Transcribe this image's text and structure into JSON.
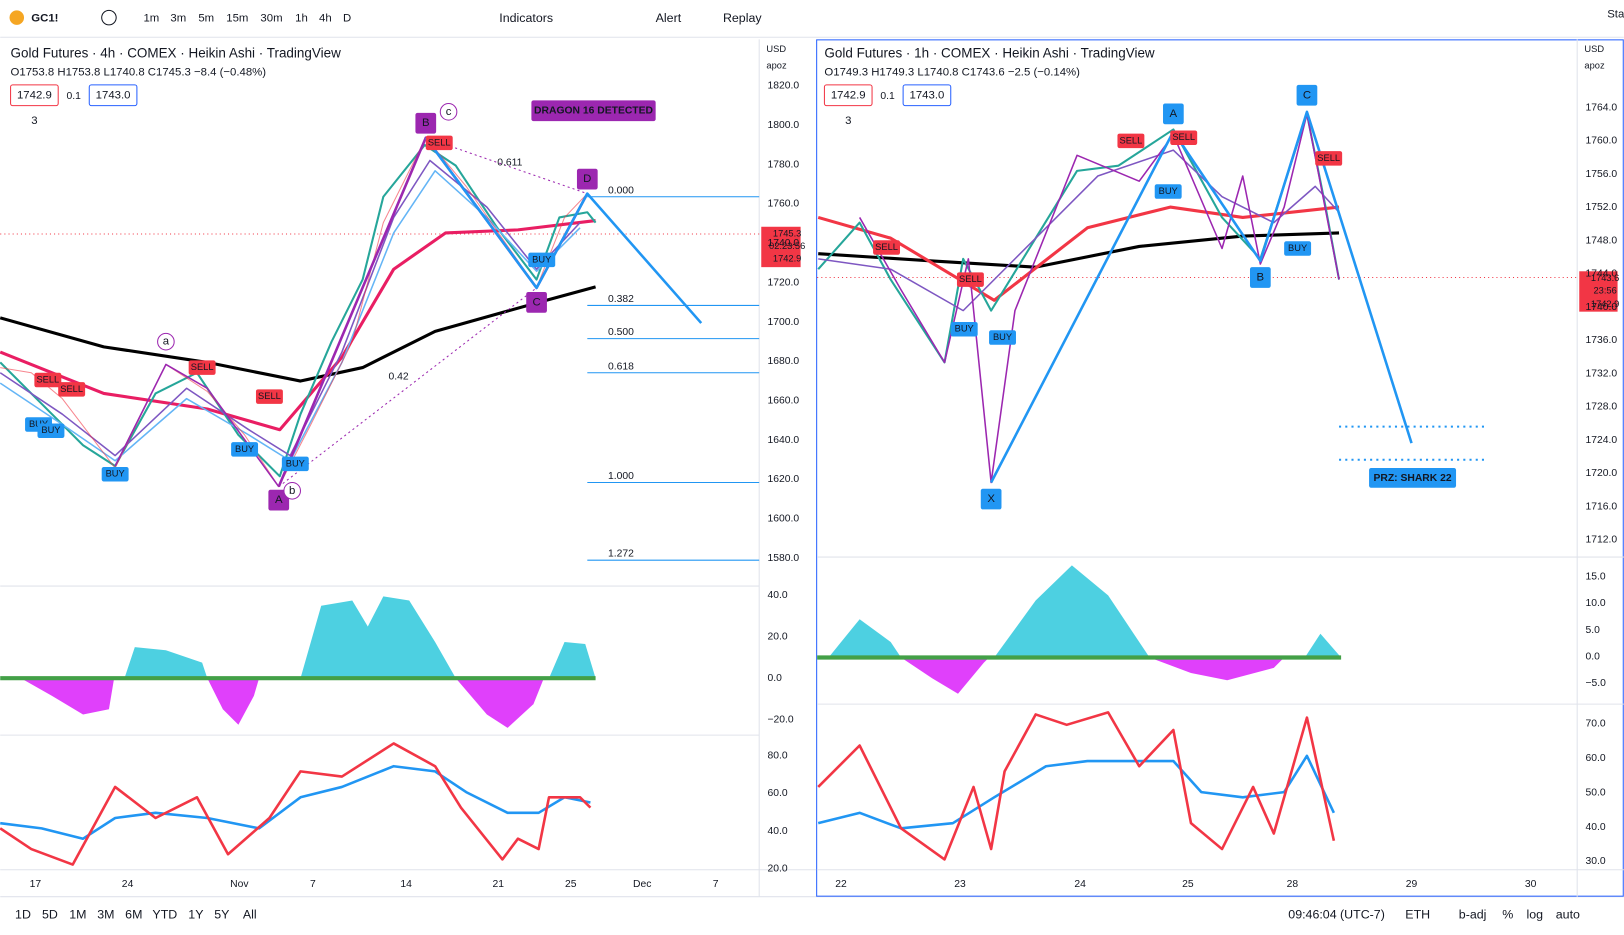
{
  "toolbar": {
    "symbol": "GC1!",
    "intervals": [
      "1m",
      "3m",
      "5m",
      "15m",
      "30m",
      "1h",
      "4h",
      "D"
    ],
    "indicators": "Indicators",
    "alert": "Alert",
    "replay": "Replay",
    "right": "Sta"
  },
  "left_pane": {
    "title": "Gold Futures · 4h · COMEX · Heikin Ashi · TradingView",
    "ohlc": "O1753.8 H1753.8 L1740.8 C1745.3 −8.4 (−0.48%)",
    "bid": "1742.9",
    "step": "0.1",
    "ask": "1743.0",
    "count": "3",
    "currency": "USD",
    "scale": "apoz",
    "price_axis": [
      "1820.0",
      "1800.0",
      "1780.0",
      "1760.0",
      "1740.0",
      "1720.0",
      "1700.0",
      "1680.0",
      "1660.0",
      "1640.0",
      "1620.0",
      "1600.0",
      "1580.0"
    ],
    "price_tag": [
      "1745.3",
      "02:23:56",
      "1742.9"
    ],
    "osc_axis": [
      "40.0",
      "20.0",
      "0.0",
      "−20.0"
    ],
    "rsi_axis": [
      "80.0",
      "60.0",
      "40.0",
      "20.0"
    ],
    "time_axis": [
      "17",
      "24",
      "Nov",
      "7",
      "14",
      "21",
      "25",
      "Dec",
      "7"
    ],
    "banner": "DRAGON 16 DETECTED",
    "fib_levels": [
      "0.000",
      "0.382",
      "0.500",
      "0.618",
      "1.000",
      "1.272"
    ],
    "ratios": [
      "0.611",
      "0.42"
    ],
    "points": [
      "A",
      "B",
      "C",
      "D"
    ],
    "waves": [
      "a",
      "b",
      "c"
    ],
    "signals": [
      "SELL",
      "SELL",
      "SELL",
      "SELL",
      "SELL",
      "BUY",
      "BUY",
      "BUY",
      "BUY",
      "BUY",
      "BUY"
    ]
  },
  "right_pane": {
    "title": "Gold Futures · 1h · COMEX · Heikin Ashi · TradingView",
    "ohlc": "O1749.3 H1749.3 L1740.8 C1743.6 −2.5 (−0.14%)",
    "bid": "1742.9",
    "step": "0.1",
    "ask": "1743.0",
    "count": "3",
    "currency": "USD",
    "scale": "apoz",
    "price_axis": [
      "1764.0",
      "1760.0",
      "1756.0",
      "1752.0",
      "1748.0",
      "1744.0",
      "1740.0",
      "1736.0",
      "1732.0",
      "1728.0",
      "1724.0",
      "1720.0",
      "1716.0",
      "1712.0"
    ],
    "price_tag": [
      "1743.6",
      "23:56",
      "1742.9"
    ],
    "osc_axis": [
      "15.0",
      "10.0",
      "5.0",
      "0.0",
      "−5.0"
    ],
    "rsi_axis": [
      "70.0",
      "60.0",
      "50.0",
      "40.0",
      "30.0"
    ],
    "time_axis": [
      "22",
      "23",
      "24",
      "25",
      "28",
      "29",
      "30"
    ],
    "banner": "PRZ: SHARK 22",
    "points": [
      "X",
      "A",
      "B",
      "C"
    ],
    "signals": [
      "SELL",
      "SELL",
      "SELL",
      "SELL",
      "SELL",
      "BUY",
      "BUY",
      "BUY",
      "BUY"
    ]
  },
  "bottom_bar": {
    "ranges": [
      "1D",
      "5D",
      "1M",
      "3M",
      "6M",
      "YTD",
      "1Y",
      "5Y",
      "All"
    ],
    "clock": "09:46:04 (UTC-7)",
    "session": "ETH",
    "adjust": "b-adj",
    "percent": "%",
    "log": "log",
    "auto": "auto"
  }
}
